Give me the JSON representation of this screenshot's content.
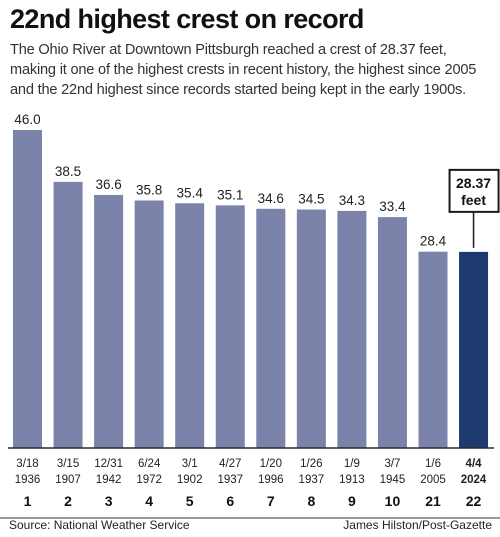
{
  "header": {
    "title": "22nd highest crest on record",
    "subtitle": "The Ohio River at Downtown Pittsburgh reached a crest of 28.37 feet, making it one of the highest crests in recent history, the highest since 2005 and the 22nd highest since records started being kept in the early 1900s."
  },
  "footer": {
    "source": "Source: National Weather Service",
    "credit": "James Hilston/Post-Gazette"
  },
  "colors": {
    "bar": "#7b83aa",
    "highlight_bar": "#1c3a6e",
    "baseline": "#2a2a2a"
  },
  "chart_data": {
    "type": "bar",
    "title": "22nd highest crest on record",
    "xlabel": "",
    "ylabel": "",
    "ylim": [
      0,
      46
    ],
    "grid": false,
    "legend": "none",
    "categories": [
      {
        "date": "3/18",
        "year": "1936",
        "rank": "1"
      },
      {
        "date": "3/15",
        "year": "1907",
        "rank": "2"
      },
      {
        "date": "12/31",
        "year": "1942",
        "rank": "3"
      },
      {
        "date": "6/24",
        "year": "1972",
        "rank": "4"
      },
      {
        "date": "3/1",
        "year": "1902",
        "rank": "5"
      },
      {
        "date": "4/27",
        "year": "1937",
        "rank": "6"
      },
      {
        "date": "1/20",
        "year": "1996",
        "rank": "7"
      },
      {
        "date": "1/26",
        "year": "1937",
        "rank": "8"
      },
      {
        "date": "1/9",
        "year": "1913",
        "rank": "9"
      },
      {
        "date": "3/7",
        "year": "1945",
        "rank": "10"
      },
      {
        "date": "1/6",
        "year": "2005",
        "rank": "21"
      },
      {
        "date": "4/4",
        "year": "2024",
        "rank": "22"
      }
    ],
    "values": [
      46.0,
      38.5,
      36.6,
      35.8,
      35.4,
      35.1,
      34.6,
      34.5,
      34.3,
      33.4,
      28.4,
      28.37
    ],
    "labels": [
      "46.0",
      "38.5",
      "36.6",
      "35.8",
      "35.4",
      "35.1",
      "34.6",
      "34.5",
      "34.3",
      "33.4",
      "28.4",
      ""
    ],
    "highlight_index": 11,
    "callout": {
      "value": "28.37",
      "unit": "feet"
    }
  }
}
